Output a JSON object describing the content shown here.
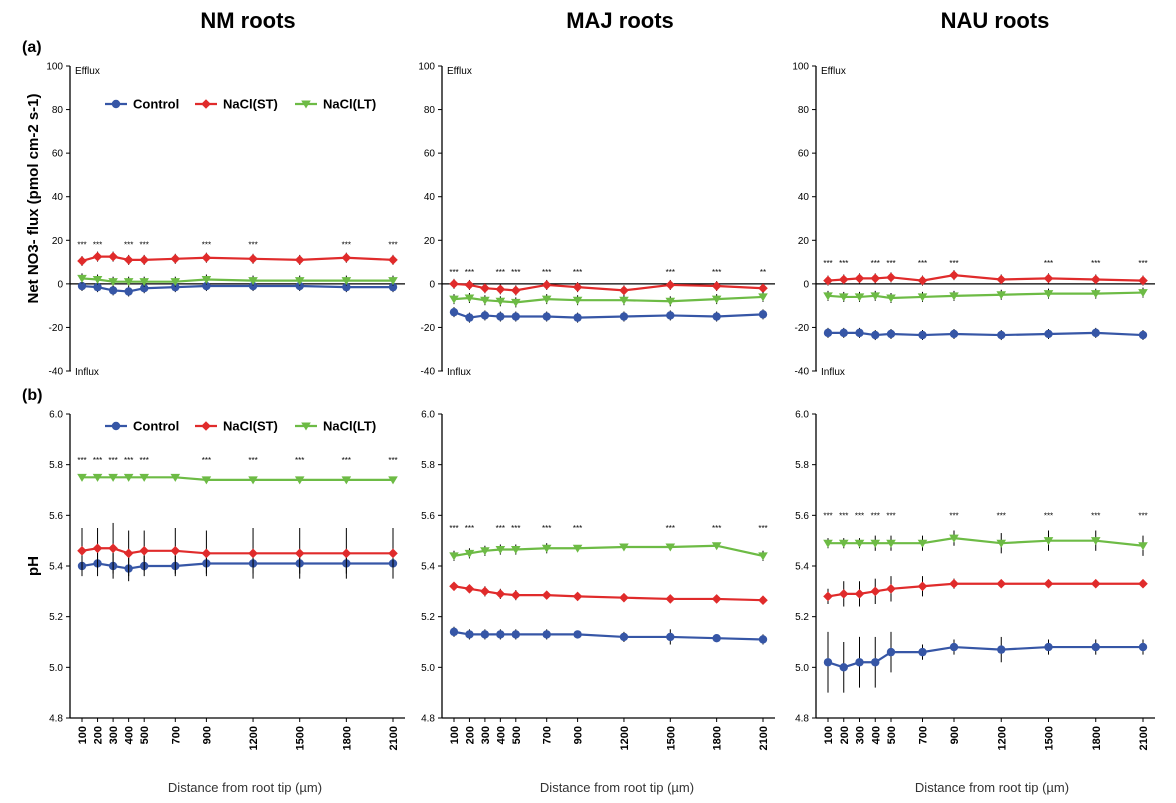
{
  "figure": {
    "panel_labels": [
      "(a)",
      "(b)"
    ],
    "xlabel": "Distance from root tip (µm)",
    "columns": [
      "NM roots",
      "MAJ roots",
      "NAU roots"
    ]
  },
  "colors": {
    "Control": "#3656a6",
    "NaCl(ST)": "#e02b2b",
    "NaCl(LT)": "#6dbb45"
  },
  "chart_data": [
    {
      "type": "line",
      "row": "a",
      "column": "NM roots",
      "title": "NM roots",
      "ylabel": "Net NO3- flux (pmol cm-2 s-1)",
      "ylim": [
        -40,
        100
      ],
      "yticks": [
        -40,
        -20,
        0,
        20,
        40,
        60,
        80,
        100
      ],
      "x": [
        100,
        200,
        300,
        400,
        500,
        700,
        900,
        1200,
        1500,
        1800,
        2100
      ],
      "series": [
        {
          "name": "Control",
          "values": [
            -1,
            -1.5,
            -3,
            -3.5,
            -2,
            -1.5,
            -1,
            -1,
            -1,
            -1.5,
            -1.5
          ]
        },
        {
          "name": "NaCl(ST)",
          "values": [
            10.5,
            12.5,
            12.5,
            11,
            11,
            11.5,
            12,
            11.5,
            11,
            12,
            11
          ]
        },
        {
          "name": "NaCl(LT)",
          "values": [
            2.5,
            2,
            1,
            1,
            1,
            1,
            2,
            1.5,
            1.5,
            1.5,
            1.5
          ]
        }
      ],
      "annotations": {
        "top": "Efflux",
        "bottom": "Influx"
      },
      "significance": [
        "***",
        "***",
        "***",
        "***",
        "***",
        "***",
        "***",
        "***"
      ],
      "legend": "top"
    },
    {
      "type": "line",
      "row": "a",
      "column": "MAJ roots",
      "title": "MAJ roots",
      "ylim": [
        -40,
        100
      ],
      "yticks": [
        -40,
        -20,
        0,
        20,
        40,
        60,
        80,
        100
      ],
      "x": [
        100,
        200,
        300,
        400,
        500,
        700,
        900,
        1200,
        1500,
        1800,
        2100
      ],
      "series": [
        {
          "name": "Control",
          "values": [
            -13,
            -15.5,
            -14.5,
            -15,
            -15,
            -15,
            -15.5,
            -15,
            -14.5,
            -15,
            -14
          ]
        },
        {
          "name": "NaCl(ST)",
          "values": [
            0,
            -0.5,
            -2,
            -2.5,
            -3,
            -0.5,
            -1.5,
            -3,
            -0.5,
            -1,
            -2
          ]
        },
        {
          "name": "NaCl(LT)",
          "values": [
            -7,
            -6.5,
            -7.5,
            -8,
            -8.5,
            -7,
            -7.5,
            -7.5,
            -8,
            -7,
            -6
          ]
        }
      ],
      "annotations": {
        "top": "Efflux",
        "bottom": "Influx"
      },
      "significance": [
        "***",
        "***",
        "***",
        "***",
        "***",
        "***",
        "***",
        "***",
        "**"
      ]
    },
    {
      "type": "line",
      "row": "a",
      "column": "NAU roots",
      "title": "NAU roots",
      "ylim": [
        -40,
        100
      ],
      "yticks": [
        -40,
        -20,
        0,
        20,
        40,
        60,
        80,
        100
      ],
      "x": [
        100,
        200,
        300,
        400,
        500,
        700,
        900,
        1200,
        1500,
        1800,
        2100
      ],
      "series": [
        {
          "name": "Control",
          "values": [
            -22.5,
            -22.5,
            -22.5,
            -23.5,
            -23,
            -23.5,
            -23,
            -23.5,
            -23,
            -22.5,
            -23.5
          ]
        },
        {
          "name": "NaCl(ST)",
          "values": [
            1.5,
            2,
            2.5,
            2.5,
            3,
            1.5,
            4,
            2,
            2.5,
            2,
            1.5
          ]
        },
        {
          "name": "NaCl(LT)",
          "values": [
            -5.5,
            -6,
            -6,
            -5.5,
            -6.5,
            -6,
            -5.5,
            -5,
            -4.5,
            -4.5,
            -4
          ]
        }
      ],
      "annotations": {
        "top": "Efflux",
        "bottom": "Influx"
      },
      "significance": [
        "***",
        "***",
        "***",
        "***",
        "***",
        "***",
        "***",
        "***",
        "***"
      ]
    },
    {
      "type": "line",
      "row": "b",
      "column": "NM roots",
      "ylabel": "pH",
      "ylim": [
        4.8,
        6.0
      ],
      "yticks": [
        4.8,
        5.0,
        5.2,
        5.4,
        5.6,
        5.8,
        6.0
      ],
      "x": [
        100,
        200,
        300,
        400,
        500,
        700,
        900,
        1200,
        1500,
        1800,
        2100
      ],
      "series": [
        {
          "name": "Control",
          "values": [
            5.4,
            5.41,
            5.4,
            5.39,
            5.4,
            5.4,
            5.41,
            5.41,
            5.41,
            5.41,
            5.41
          ],
          "err": [
            0.04,
            0.05,
            0.05,
            0.05,
            0.04,
            0.04,
            0.04,
            0.04,
            0.04,
            0.04,
            0.04
          ]
        },
        {
          "name": "NaCl(ST)",
          "values": [
            5.46,
            5.47,
            5.47,
            5.45,
            5.46,
            5.46,
            5.45,
            5.45,
            5.45,
            5.45,
            5.45
          ],
          "err": [
            0.09,
            0.08,
            0.1,
            0.09,
            0.08,
            0.09,
            0.09,
            0.1,
            0.1,
            0.1,
            0.1
          ]
        },
        {
          "name": "NaCl(LT)",
          "values": [
            5.75,
            5.75,
            5.75,
            5.75,
            5.75,
            5.75,
            5.74,
            5.74,
            5.74,
            5.74,
            5.74
          ],
          "err": [
            0.01,
            0.01,
            0.01,
            0.01,
            0.01,
            0.01,
            0.01,
            0.01,
            0.01,
            0.01,
            0.01
          ]
        }
      ],
      "significance": [
        "***",
        "***",
        "***",
        "***",
        "***",
        "***",
        "***",
        "***",
        "***",
        "***"
      ],
      "legend": "top"
    },
    {
      "type": "line",
      "row": "b",
      "column": "MAJ roots",
      "ylim": [
        4.8,
        6.0
      ],
      "yticks": [
        4.8,
        5.0,
        5.2,
        5.4,
        5.6,
        5.8,
        6.0
      ],
      "x": [
        100,
        200,
        300,
        400,
        500,
        700,
        900,
        1200,
        1500,
        1800,
        2100
      ],
      "series": [
        {
          "name": "Control",
          "values": [
            5.14,
            5.13,
            5.13,
            5.13,
            5.13,
            5.13,
            5.13,
            5.12,
            5.12,
            5.115,
            5.11
          ],
          "err": [
            0.02,
            0.02,
            0.02,
            0.02,
            0.02,
            0.02,
            0.01,
            0.02,
            0.03,
            0.01,
            0.02
          ]
        },
        {
          "name": "NaCl(ST)",
          "values": [
            5.32,
            5.31,
            5.3,
            5.29,
            5.285,
            5.285,
            5.28,
            5.275,
            5.27,
            5.27,
            5.265
          ],
          "err": [
            0.01,
            0.01,
            0.02,
            0.02,
            0.02,
            0.01,
            0.01,
            0.01,
            0.01,
            0.01,
            0.01
          ]
        },
        {
          "name": "NaCl(LT)",
          "values": [
            5.44,
            5.45,
            5.46,
            5.465,
            5.465,
            5.47,
            5.47,
            5.475,
            5.475,
            5.48,
            5.44
          ],
          "err": [
            0.02,
            0.02,
            0.02,
            0.02,
            0.02,
            0.02,
            0.01,
            0.01,
            0.01,
            0.01,
            0.02
          ]
        }
      ],
      "significance": [
        "***",
        "***",
        "***",
        "***",
        "***",
        "***",
        "***",
        "***",
        "***"
      ]
    },
    {
      "type": "line",
      "row": "b",
      "column": "NAU roots",
      "ylim": [
        4.8,
        6.0
      ],
      "yticks": [
        4.8,
        5.0,
        5.2,
        5.4,
        5.6,
        5.8,
        6.0
      ],
      "x": [
        100,
        200,
        300,
        400,
        500,
        700,
        900,
        1200,
        1500,
        1800,
        2100
      ],
      "series": [
        {
          "name": "Control",
          "values": [
            5.02,
            5.0,
            5.02,
            5.02,
            5.06,
            5.06,
            5.08,
            5.07,
            5.08,
            5.08,
            5.08
          ],
          "err": [
            0.12,
            0.1,
            0.1,
            0.1,
            0.08,
            0.03,
            0.03,
            0.05,
            0.03,
            0.03,
            0.03
          ]
        },
        {
          "name": "NaCl(ST)",
          "values": [
            5.28,
            5.29,
            5.29,
            5.3,
            5.31,
            5.32,
            5.33,
            5.33,
            5.33,
            5.33,
            5.33
          ],
          "err": [
            0.03,
            0.05,
            0.05,
            0.05,
            0.05,
            0.04,
            0.02,
            0.01,
            0.01,
            0.01,
            0.01
          ]
        },
        {
          "name": "NaCl(LT)",
          "values": [
            5.49,
            5.49,
            5.49,
            5.49,
            5.49,
            5.49,
            5.51,
            5.49,
            5.5,
            5.5,
            5.48
          ],
          "err": [
            0.02,
            0.02,
            0.02,
            0.03,
            0.03,
            0.03,
            0.03,
            0.04,
            0.04,
            0.04,
            0.04
          ]
        }
      ],
      "significance": [
        "***",
        "***",
        "***",
        "***",
        "***",
        "***",
        "***",
        "***",
        "***",
        "***"
      ]
    }
  ]
}
